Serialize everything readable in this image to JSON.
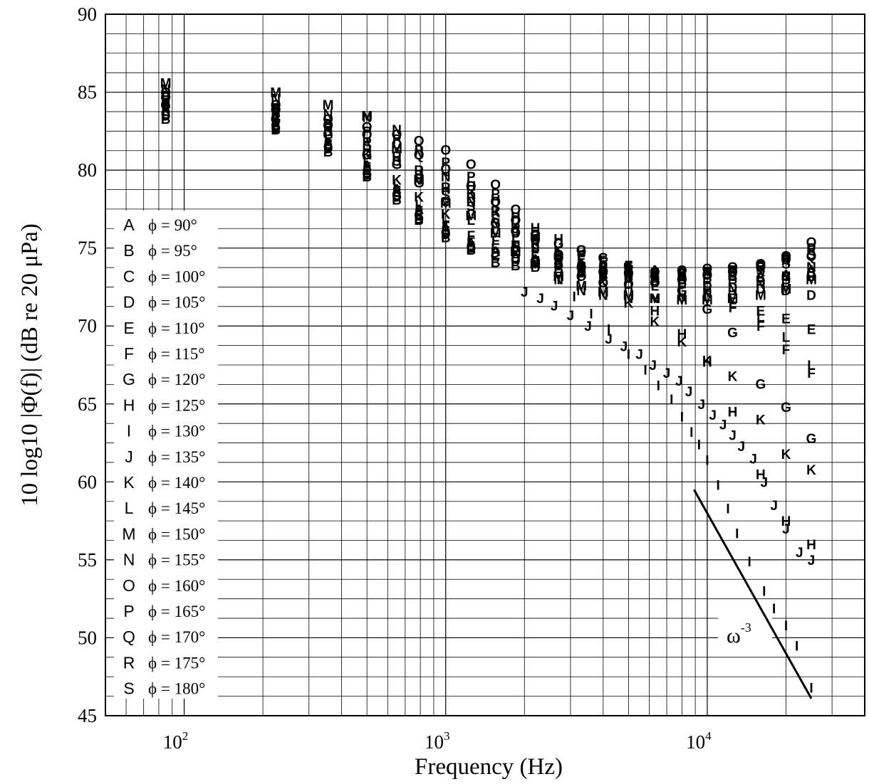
{
  "chart_data": {
    "type": "scatter",
    "title": "",
    "xlabel": "Frequency (Hz)",
    "ylabel": "10 log10 |Φ(f)| (dB re 20 μPa)",
    "xscale": "log",
    "xlim": [
      50,
      40000
    ],
    "ylim": [
      45,
      90
    ],
    "xticks": [
      {
        "value": 100,
        "base": "10",
        "exp": "2"
      },
      {
        "value": 1000,
        "base": "10",
        "exp": "3"
      },
      {
        "value": 10000,
        "base": "10",
        "exp": "4"
      }
    ],
    "yticks": [
      45,
      50,
      55,
      60,
      65,
      70,
      75,
      80,
      85,
      90
    ],
    "grid": true,
    "legend_position": "left",
    "series": [
      {
        "name": "A",
        "label": "ϕ = 90°",
        "x": [
          85,
          224,
          355,
          500,
          650,
          790,
          1000,
          1250,
          1550,
          1850,
          2200,
          2700,
          3300,
          4000,
          5000,
          6300,
          8000,
          10000,
          12500,
          16000,
          20000,
          25000
        ],
        "y": [
          84.0,
          83.0,
          81.8,
          80.3,
          78.8,
          77.5,
          76.3,
          75.3,
          74.8,
          74.5,
          74.3,
          74.1,
          74.0,
          73.9,
          73.8,
          73.6,
          73.5,
          73.4,
          73.3,
          73.2,
          73.3,
          73.6
        ]
      },
      {
        "name": "B",
        "label": "ϕ = 95°",
        "x": [
          85,
          224,
          355,
          500,
          650,
          790,
          1000,
          1250,
          1550,
          1850,
          2200,
          2700,
          3300,
          4000,
          5000,
          6300,
          8000,
          10000,
          12500,
          16000,
          20000,
          25000
        ],
        "y": [
          83.3,
          82.6,
          81.2,
          79.6,
          78.1,
          76.8,
          75.7,
          74.9,
          74.1,
          73.9,
          73.8,
          73.7,
          73.6,
          73.5,
          73.4,
          73.3,
          73.2,
          73.1,
          73.0,
          72.9,
          73.0,
          73.2
        ]
      },
      {
        "name": "C",
        "label": "ϕ = 100°",
        "x": [
          85,
          224,
          355,
          500,
          650,
          790,
          1000,
          1250,
          1550,
          1850,
          2200,
          2700,
          3300,
          4000,
          5000,
          6300,
          8000,
          10000,
          12500,
          16000,
          20000,
          25000
        ],
        "y": [
          83.6,
          82.9,
          81.5,
          79.8,
          78.4,
          77.1,
          76.0,
          75.1,
          74.5,
          74.3,
          74.2,
          74.0,
          73.9,
          73.8,
          73.7,
          73.5,
          73.4,
          73.3,
          73.2,
          73.1,
          73.2,
          73.4
        ]
      },
      {
        "name": "D",
        "label": "ϕ = 105°",
        "x": [
          85,
          224,
          355,
          500,
          650,
          790,
          1000,
          1250,
          1550,
          1850,
          2200,
          2700,
          3300,
          4000,
          5000,
          6300,
          8000,
          10000,
          12500,
          16000,
          20000,
          25000
        ],
        "y": [
          83.5,
          82.7,
          81.4,
          79.7,
          78.3,
          76.9,
          75.9,
          75.0,
          74.7,
          74.4,
          74.1,
          73.9,
          73.6,
          73.4,
          73.2,
          72.9,
          72.7,
          72.6,
          72.5,
          72.4,
          72.3,
          72.0
        ]
      },
      {
        "name": "E",
        "label": "ϕ = 110°",
        "x": [
          85,
          224,
          355,
          500,
          650,
          790,
          1000,
          1250,
          1550,
          1850,
          2200,
          2700,
          3300,
          4000,
          5000,
          6300,
          8000,
          10000,
          12500,
          16000,
          20000,
          25000
        ],
        "y": [
          83.8,
          82.8,
          81.6,
          80.0,
          78.6,
          77.2,
          76.1,
          75.4,
          75.0,
          74.8,
          74.7,
          74.5,
          74.3,
          74.1,
          73.8,
          73.4,
          73.0,
          72.5,
          71.8,
          71.0,
          70.5,
          69.8
        ]
      },
      {
        "name": "F",
        "label": "ϕ = 115°",
        "x": [
          85,
          224,
          355,
          500,
          650,
          790,
          1000,
          1250,
          1550,
          1850,
          2200,
          2700,
          3300,
          4000,
          5000,
          6300,
          8000,
          10000,
          12500,
          16000,
          20000,
          25000
        ],
        "y": [
          83.9,
          83.0,
          81.7,
          80.2,
          78.7,
          77.4,
          76.4,
          75.8,
          75.5,
          75.2,
          75.0,
          74.8,
          74.5,
          74.2,
          73.9,
          73.4,
          72.8,
          72.1,
          71.2,
          70.0,
          68.5,
          67.0
        ]
      },
      {
        "name": "G",
        "label": "ϕ = 120°",
        "x": [
          85,
          224,
          355,
          500,
          650,
          790,
          1000,
          1250,
          1550,
          1850,
          2200,
          2700,
          3300,
          4000,
          5000,
          6300,
          8000,
          10000,
          12500,
          16000,
          20000,
          25000
        ],
        "y": [
          84.2,
          83.3,
          82.3,
          81.0,
          80.4,
          79.2,
          78.0,
          77.2,
          76.6,
          76.1,
          75.8,
          75.3,
          74.9,
          74.4,
          73.9,
          73.2,
          72.3,
          71.1,
          69.6,
          66.3,
          64.8,
          62.8
        ]
      },
      {
        "name": "H",
        "label": "ϕ = 125°",
        "x": [
          85,
          224,
          355,
          500,
          650,
          790,
          1000,
          1250,
          1550,
          1850,
          2200,
          2700,
          3300,
          4000,
          5000,
          6300,
          8000,
          10000,
          12500,
          16000,
          20000,
          25000
        ],
        "y": [
          84.6,
          83.7,
          82.8,
          81.3,
          80.8,
          79.7,
          78.8,
          79.0,
          78.1,
          77.0,
          76.3,
          75.6,
          74.8,
          73.8,
          72.5,
          71.0,
          69.5,
          67.7,
          64.5,
          60.5,
          57.5,
          56.0
        ]
      },
      {
        "name": "I",
        "label": "ϕ = 130°",
        "x": [
          2700,
          3100,
          3600,
          4200,
          5000,
          5800,
          6500,
          7300,
          8000,
          8700,
          9300,
          10000,
          11000,
          12000,
          13000,
          14500,
          16500,
          18000,
          20000,
          22000,
          25000
        ],
        "y": [
          73.0,
          71.9,
          70.8,
          69.8,
          68.2,
          67.2,
          66.2,
          65.3,
          64.2,
          63.2,
          62.4,
          61.4,
          59.8,
          58.3,
          56.7,
          54.9,
          53.0,
          51.9,
          50.8,
          49.5,
          46.8
        ]
      },
      {
        "name": "J",
        "label": "ϕ = 135°",
        "x": [
          2000,
          2300,
          2600,
          3000,
          3500,
          4200,
          4800,
          5500,
          6200,
          7000,
          7800,
          8500,
          9500,
          10500,
          11500,
          12500,
          13500,
          15000,
          16500,
          18000,
          20000,
          22500,
          25000
        ],
        "y": [
          72.2,
          71.8,
          71.3,
          70.7,
          70.0,
          69.2,
          68.7,
          68.2,
          67.5,
          67.0,
          66.5,
          65.8,
          65.0,
          64.3,
          63.7,
          63.0,
          62.3,
          61.5,
          60.0,
          58.5,
          57.0,
          55.5,
          55.0
        ]
      },
      {
        "name": "K",
        "label": "ϕ = 140°",
        "x": [
          85,
          224,
          355,
          500,
          650,
          790,
          1000,
          1250,
          1550,
          1850,
          2200,
          2700,
          3300,
          4000,
          5000,
          6300,
          8000,
          10000,
          12500,
          16000,
          20000,
          25000
        ],
        "y": [
          84.4,
          83.5,
          82.6,
          81.0,
          79.4,
          78.3,
          77.2,
          78.5,
          77.3,
          76.4,
          75.7,
          74.9,
          73.8,
          72.8,
          71.5,
          70.3,
          69.0,
          67.8,
          66.8,
          64.0,
          61.8,
          60.8
        ]
      },
      {
        "name": "L",
        "label": "ϕ = 145°",
        "x": [
          85,
          224,
          355,
          500,
          650,
          790,
          1000,
          1250,
          1550,
          1850,
          2200,
          2700,
          3300,
          4000,
          5000,
          6300,
          8000,
          10000,
          12500,
          16000,
          20000,
          25000
        ],
        "y": [
          84.1,
          83.2,
          82.1,
          80.6,
          79.0,
          77.8,
          77.0,
          76.8,
          76.2,
          75.6,
          75.1,
          74.6,
          74.1,
          73.6,
          73.1,
          72.6,
          72.2,
          71.9,
          71.5,
          70.6,
          69.3,
          67.5
        ]
      },
      {
        "name": "M",
        "label": "ϕ = 150°",
        "x": [
          85,
          224,
          355,
          500,
          650,
          790,
          1000,
          1250,
          1550,
          1850,
          2200,
          2700,
          3300,
          4000,
          5000,
          6300,
          8000,
          10000,
          12500,
          16000,
          20000,
          25000
        ],
        "y": [
          85.6,
          85.0,
          84.2,
          83.5,
          81.4,
          79.4,
          77.9,
          77.1,
          76.0,
          74.8,
          74.0,
          73.2,
          72.6,
          72.2,
          72.0,
          71.8,
          71.7,
          71.7,
          71.8,
          72.0,
          72.4,
          73.0
        ]
      },
      {
        "name": "N",
        "label": "ϕ = 155°",
        "x": [
          85,
          224,
          355,
          500,
          650,
          790,
          1000,
          1250,
          1550,
          1850,
          2200,
          2700,
          3300,
          4000,
          5000,
          6300,
          8000,
          10000,
          12500,
          16000,
          20000,
          25000
        ],
        "y": [
          85.2,
          84.6,
          83.6,
          83.4,
          82.6,
          81.1,
          79.6,
          78.0,
          76.6,
          75.2,
          74.1,
          73.0,
          72.3,
          72.0,
          71.8,
          71.8,
          71.9,
          72.1,
          72.4,
          72.7,
          73.2,
          73.8
        ]
      },
      {
        "name": "O",
        "label": "ϕ = 160°",
        "x": [
          85,
          224,
          355,
          500,
          650,
          790,
          1000,
          1250,
          1550,
          1850,
          2200,
          2700,
          3300,
          4000,
          5000,
          6300,
          8000,
          10000,
          12500,
          16000,
          20000,
          25000
        ],
        "y": [
          85.0,
          84.2,
          83.3,
          82.8,
          82.3,
          81.9,
          81.3,
          80.4,
          79.1,
          77.5,
          75.9,
          74.4,
          73.2,
          72.8,
          72.7,
          72.8,
          73.0,
          73.3,
          73.5,
          73.8,
          74.3,
          75.4
        ]
      },
      {
        "name": "P",
        "label": "ϕ = 165°",
        "x": [
          85,
          224,
          355,
          500,
          650,
          790,
          1000,
          1250,
          1550,
          1850,
          2200,
          2700,
          3300,
          4000,
          5000,
          6300,
          8000,
          10000,
          12500,
          16000,
          20000,
          25000
        ],
        "y": [
          84.8,
          84.0,
          83.0,
          82.5,
          82.0,
          81.3,
          80.5,
          79.6,
          78.5,
          77.0,
          75.5,
          74.2,
          73.2,
          73.0,
          73.0,
          73.1,
          73.2,
          73.4,
          73.6,
          73.9,
          74.4,
          75.0
        ]
      },
      {
        "name": "Q",
        "label": "ϕ = 170°",
        "x": [
          85,
          224,
          355,
          500,
          650,
          790,
          1000,
          1250,
          1550,
          1850,
          2200,
          2700,
          3300,
          4000,
          5000,
          6300,
          8000,
          10000,
          12500,
          16000,
          20000,
          25000
        ],
        "y": [
          84.7,
          83.9,
          82.9,
          82.3,
          81.7,
          81.0,
          80.1,
          79.0,
          78.0,
          76.8,
          75.6,
          74.6,
          73.8,
          73.5,
          73.4,
          73.5,
          73.6,
          73.7,
          73.8,
          74.0,
          74.5,
          74.5
        ]
      },
      {
        "name": "R",
        "label": "ϕ = 175°",
        "x": [
          85,
          224,
          355,
          500,
          650,
          790,
          1000,
          1250,
          1550,
          1850,
          2200,
          2700,
          3300,
          4000,
          5000,
          6300,
          8000,
          10000,
          12500,
          16000,
          20000,
          25000
        ],
        "y": [
          84.5,
          83.8,
          82.7,
          81.8,
          80.9,
          80.0,
          78.9,
          78.3,
          77.4,
          76.3,
          75.3,
          74.3,
          73.7,
          73.4,
          73.3,
          73.3,
          73.4,
          73.5,
          73.6,
          73.8,
          74.2,
          74.9
        ]
      },
      {
        "name": "S",
        "label": "ϕ = 180°",
        "x": [
          85,
          224,
          355,
          500,
          650,
          790,
          1000,
          1250,
          1550,
          1850,
          2200,
          2700,
          3300,
          4000,
          5000,
          6300,
          8000,
          10000,
          12500,
          16000,
          20000,
          25000
        ],
        "y": [
          84.3,
          83.6,
          82.5,
          81.6,
          80.6,
          79.5,
          78.4,
          77.7,
          76.9,
          76.0,
          75.0,
          74.1,
          73.5,
          73.2,
          73.1,
          73.1,
          73.2,
          73.3,
          73.4,
          73.6,
          74.0,
          74.6
        ]
      }
    ],
    "reference_line": {
      "label": "ω",
      "sup": "-3",
      "x": [
        8900,
        25000
      ],
      "y": [
        59.5,
        46.1
      ]
    }
  }
}
